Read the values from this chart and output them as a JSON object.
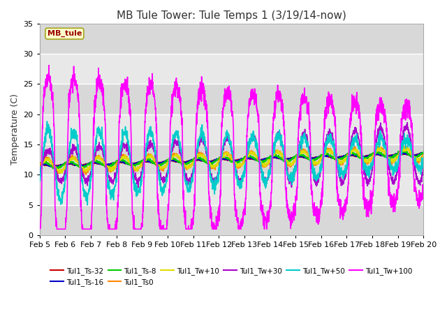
{
  "title": "MB Tule Tower: Tule Temps 1 (3/19/14-now)",
  "ylabel": "Temperature (C)",
  "xlim_days": [
    5,
    20
  ],
  "ylim": [
    0,
    35
  ],
  "yticks": [
    0,
    5,
    10,
    15,
    20,
    25,
    30,
    35
  ],
  "x_tick_labels": [
    "Feb 5",
    "Feb 6",
    "Feb 7",
    "Feb 8",
    "Feb 9",
    "Feb 10",
    "Feb 11",
    "Feb 12",
    "Feb 13",
    "Feb 14",
    "Feb 15",
    "Feb 16",
    "Feb 17",
    "Feb 18",
    "Feb 19",
    "Feb 20"
  ],
  "legend_box_label": "MB_tule",
  "series_order": [
    "Tul1_Ts-32",
    "Tul1_Ts-16",
    "Tul1_Ts-8",
    "Tul1_Ts0",
    "Tul1_Tw+10",
    "Tul1_Tw+30",
    "Tul1_Tw+50",
    "Tul1_Tw+100"
  ],
  "series": {
    "Tul1_Ts-32": {
      "color": "#cc0000",
      "lw": 1.2
    },
    "Tul1_Ts-16": {
      "color": "#0000cc",
      "lw": 1.2
    },
    "Tul1_Ts-8": {
      "color": "#00cc00",
      "lw": 1.2
    },
    "Tul1_Ts0": {
      "color": "#ff8800",
      "lw": 1.2
    },
    "Tul1_Tw+10": {
      "color": "#dddd00",
      "lw": 1.2
    },
    "Tul1_Tw+30": {
      "color": "#aa00cc",
      "lw": 1.2
    },
    "Tul1_Tw+50": {
      "color": "#00cccc",
      "lw": 1.2
    },
    "Tul1_Tw+100": {
      "color": "#ff00ff",
      "lw": 1.2
    }
  },
  "legend_row1": [
    "Tul1_Ts-32",
    "Tul1_Ts-16",
    "Tul1_Ts-8",
    "Tul1_Ts0",
    "Tul1_Tw+10",
    "Tul1_Tw+30"
  ],
  "legend_row2": [
    "Tul1_Tw+50",
    "Tul1_Tw+100"
  ],
  "bg_color": "#e8e8e8",
  "title_fontsize": 11,
  "axis_fontsize": 9,
  "tick_fontsize": 8,
  "figsize": [
    6.4,
    4.8
  ],
  "dpi": 100
}
